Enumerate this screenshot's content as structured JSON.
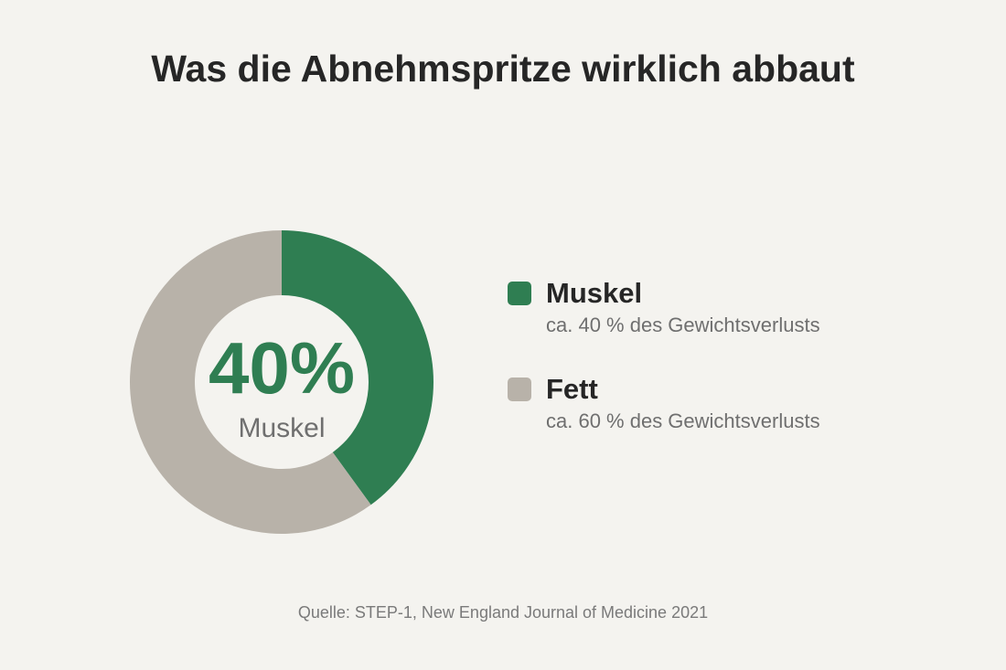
{
  "chart_data": {
    "type": "pie",
    "title": "Was die Abnehmspritze wirklich abbaut",
    "categories": [
      "Muskel",
      "Fett"
    ],
    "values": [
      40,
      60
    ],
    "unit": "%",
    "colors": [
      "#2f7e52",
      "#b8b2a9"
    ],
    "center": {
      "value": "40%",
      "label": "Muskel",
      "color": "#2f7e52",
      "label_color": "#6f6f6f"
    },
    "legend": {
      "position": "right",
      "entries": [
        {
          "name": "Muskel",
          "description": "ca. 40 % des Gewichtsverlusts",
          "color": "#2f7e52"
        },
        {
          "name": "Fett",
          "description": "ca. 60 % des Gewichtsverlusts",
          "color": "#b8b2a9"
        }
      ]
    },
    "source": "Quelle: STEP-1, New England Journal of Medicine 2021"
  }
}
